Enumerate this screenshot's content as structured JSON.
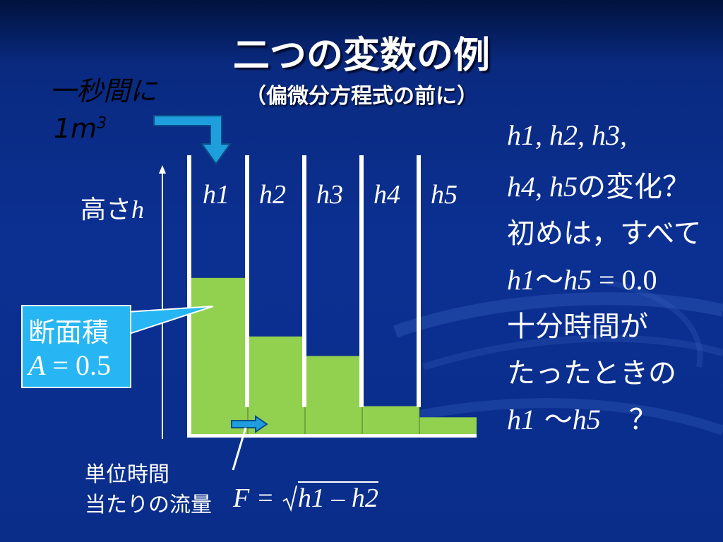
{
  "slide": {
    "title": "二つの変数の例",
    "subtitle": "（偏微分方程式の前に）",
    "inflow_rate_line1": "一秒間に",
    "inflow_rate_line2": "1m",
    "inflow_rate_exponent": "3",
    "height_label": "高さ",
    "height_var": "h",
    "tubes": [
      {
        "label": "h1",
        "level": 0.56
      },
      {
        "label": "h2",
        "level": 0.35
      },
      {
        "label": "h3",
        "level": 0.28
      },
      {
        "label": "h4",
        "level": 0.1
      },
      {
        "label": "h5",
        "level": 0.06
      }
    ],
    "area_callout": {
      "title": "断面積",
      "formula_var": "A",
      "formula_rest": " = 0.5"
    },
    "question": {
      "line1": "h1, h2, h3,",
      "line2_var": "h4, h5",
      "line2_text": "の変化？",
      "line3": "初めは，すべて",
      "line4_var1": "h1",
      "line4_mid": "～",
      "line4_var2": "h5",
      "line4_rest": " = 0.0",
      "line5": "十分時間が",
      "line6": "たったときの",
      "line7_var1": "h1",
      "line7_mid": " ～",
      "line7_var2": "h5",
      "line7_rest": "　？"
    },
    "flow": {
      "label_line1": "単位時間",
      "label_line2": "当たりの流量",
      "formula_lhs": "F =",
      "formula_rhs": "h1 – h2"
    },
    "colors": {
      "water": "#92d050",
      "callout": "#27b6f3",
      "arrow": "#1f9ede"
    }
  }
}
